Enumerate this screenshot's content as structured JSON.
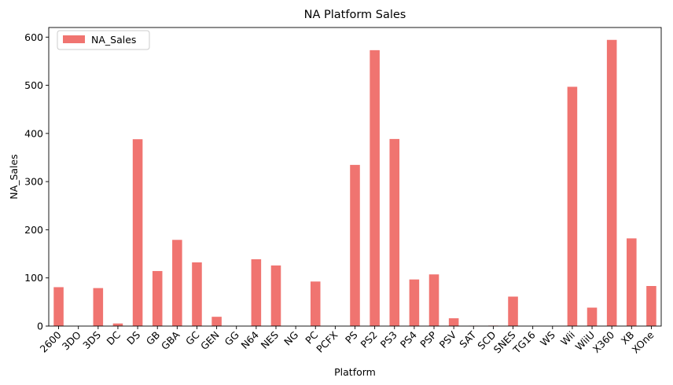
{
  "chart_data": {
    "type": "bar",
    "title": "NA Platform Sales",
    "xlabel": "Platform",
    "ylabel": "NA_Sales",
    "ylim": [
      0,
      620
    ],
    "yticks": [
      0,
      100,
      200,
      300,
      400,
      500,
      600
    ],
    "grid": false,
    "legend_position": "top-left",
    "bar_color": "#f07470",
    "categories": [
      "2600",
      "3DO",
      "3DS",
      "DC",
      "DS",
      "GB",
      "GBA",
      "GC",
      "GEN",
      "GG",
      "N64",
      "NES",
      "NG",
      "PC",
      "PCFX",
      "PS",
      "PS2",
      "PS3",
      "PS4",
      "PSP",
      "PSV",
      "SAT",
      "SCD",
      "SNES",
      "TG16",
      "WS",
      "Wii",
      "WiiU",
      "X360",
      "XB",
      "XOne"
    ],
    "series": [
      {
        "name": "NA_Sales",
        "values": [
          80.8,
          0.0,
          78.9,
          5.4,
          388.0,
          114.3,
          179.0,
          132.3,
          19.3,
          0.0,
          138.8,
          125.9,
          0.0,
          92.5,
          0.0,
          334.7,
          572.9,
          388.5,
          96.8,
          107.3,
          16.2,
          0.7,
          1.0,
          61.2,
          0.0,
          0.0,
          496.9,
          38.3,
          594.3,
          182.1,
          83.2
        ]
      }
    ]
  }
}
